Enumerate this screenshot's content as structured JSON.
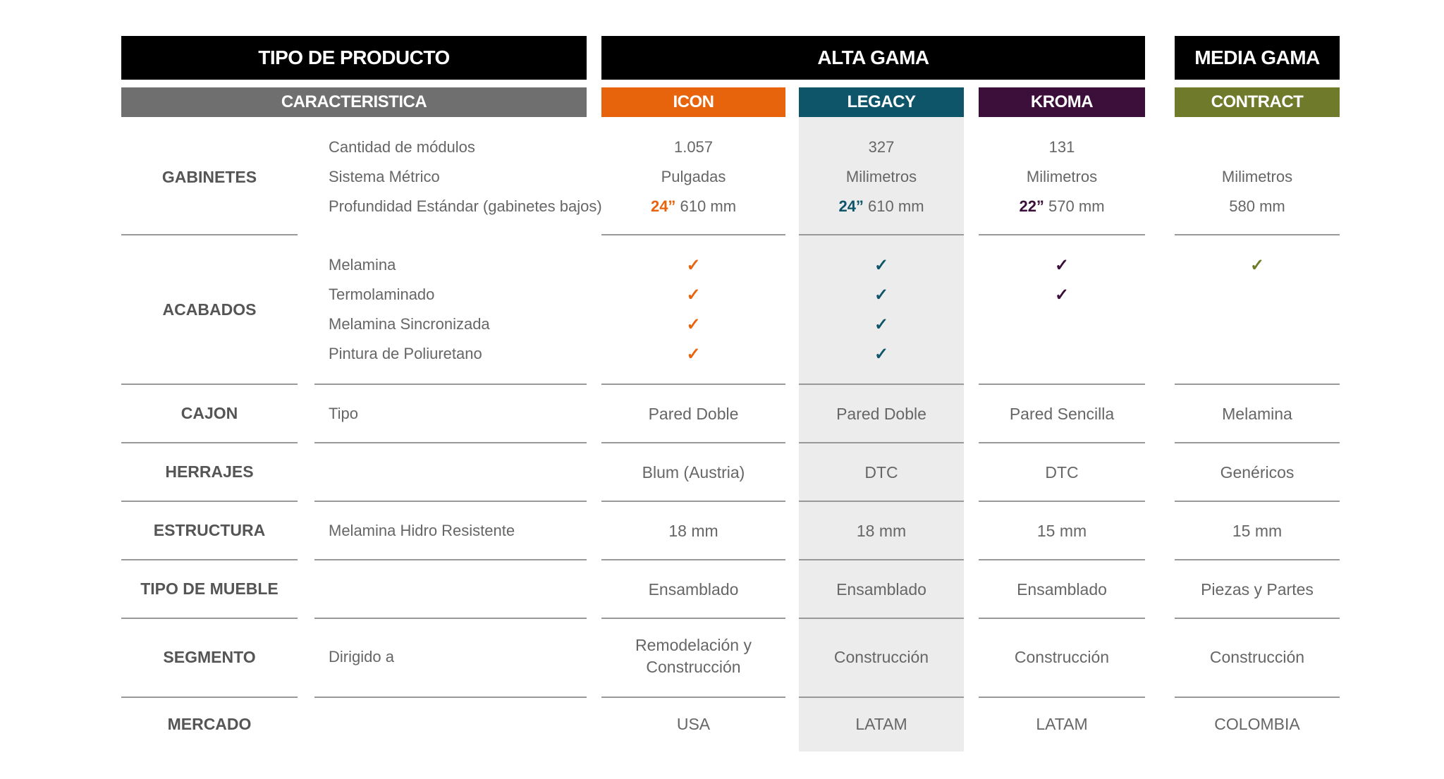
{
  "colors": {
    "header_black": "#000000",
    "caracteristica_gray": "#6f6f6f",
    "icon": "#e8640c",
    "legacy": "#0f5569",
    "kroma": "#3b0f3a",
    "contract": "#6f7a2a",
    "legacy_shade": "#ececec"
  },
  "headers": {
    "tipo_de_producto": "TIPO DE PRODUCTO",
    "alta_gama": "ALTA GAMA",
    "media_gama": "MEDIA GAMA",
    "caracteristica": "CARACTERISTICA",
    "icon": "ICON",
    "legacy": "LEGACY",
    "kroma": "KROMA",
    "contract": "CONTRACT"
  },
  "gabinetes": {
    "label": "GABINETES",
    "sub": [
      "Cantidad de módulos",
      "Sistema Métrico",
      "Profundidad Estándar (gabinetes bajos)"
    ],
    "icon": {
      "cantidad": "1.057",
      "sistema": "Pulgadas",
      "depth_in": "24”",
      "depth_mm": " 610 mm"
    },
    "legacy": {
      "cantidad": "327",
      "sistema": "Milimetros",
      "depth_in": "24”",
      "depth_mm": " 610 mm"
    },
    "kroma": {
      "cantidad": "131",
      "sistema": "Milimetros",
      "depth_in": "22”",
      "depth_mm": " 570 mm"
    },
    "contract": {
      "cantidad": "",
      "sistema": "Milimetros",
      "depth_mm": "580 mm"
    }
  },
  "acabados": {
    "label": "ACABADOS",
    "sub": [
      "Melamina",
      "Termolaminado",
      "Melamina Sincronizada",
      "Pintura de Poliuretano"
    ],
    "check_glyph": "✓",
    "icon": [
      true,
      true,
      true,
      true
    ],
    "legacy": [
      true,
      true,
      true,
      true
    ],
    "kroma": [
      true,
      true,
      false,
      false
    ],
    "contract": [
      true,
      false,
      false,
      false
    ]
  },
  "cajon": {
    "label": "CAJON",
    "sub": "Tipo",
    "icon": "Pared Doble",
    "legacy": "Pared Doble",
    "kroma": "Pared Sencilla",
    "contract": "Melamina"
  },
  "herrajes": {
    "label": "HERRAJES",
    "sub": "",
    "icon": "Blum (Austria)",
    "legacy": "DTC",
    "kroma": "DTC",
    "contract": "Genéricos"
  },
  "estructura": {
    "label": "ESTRUCTURA",
    "sub": "Melamina Hidro Resistente",
    "icon": "18 mm",
    "legacy": "18 mm",
    "kroma": "15 mm",
    "contract": "15 mm"
  },
  "tipo_mueble": {
    "label": "TIPO DE MUEBLE",
    "sub": "",
    "icon": "Ensamblado",
    "legacy": "Ensamblado",
    "kroma": "Ensamblado",
    "contract": "Piezas y Partes"
  },
  "segmento": {
    "label": "SEGMENTO",
    "sub": "Dirigido a",
    "icon_line1": "Remodelación y",
    "icon_line2": "Construcción",
    "legacy": "Construcción",
    "kroma": "Construcción",
    "contract": "Construcción"
  },
  "mercado": {
    "label": "MERCADO",
    "sub": "",
    "icon": "USA",
    "legacy": "LATAM",
    "kroma": "LATAM",
    "contract": "COLOMBIA"
  }
}
